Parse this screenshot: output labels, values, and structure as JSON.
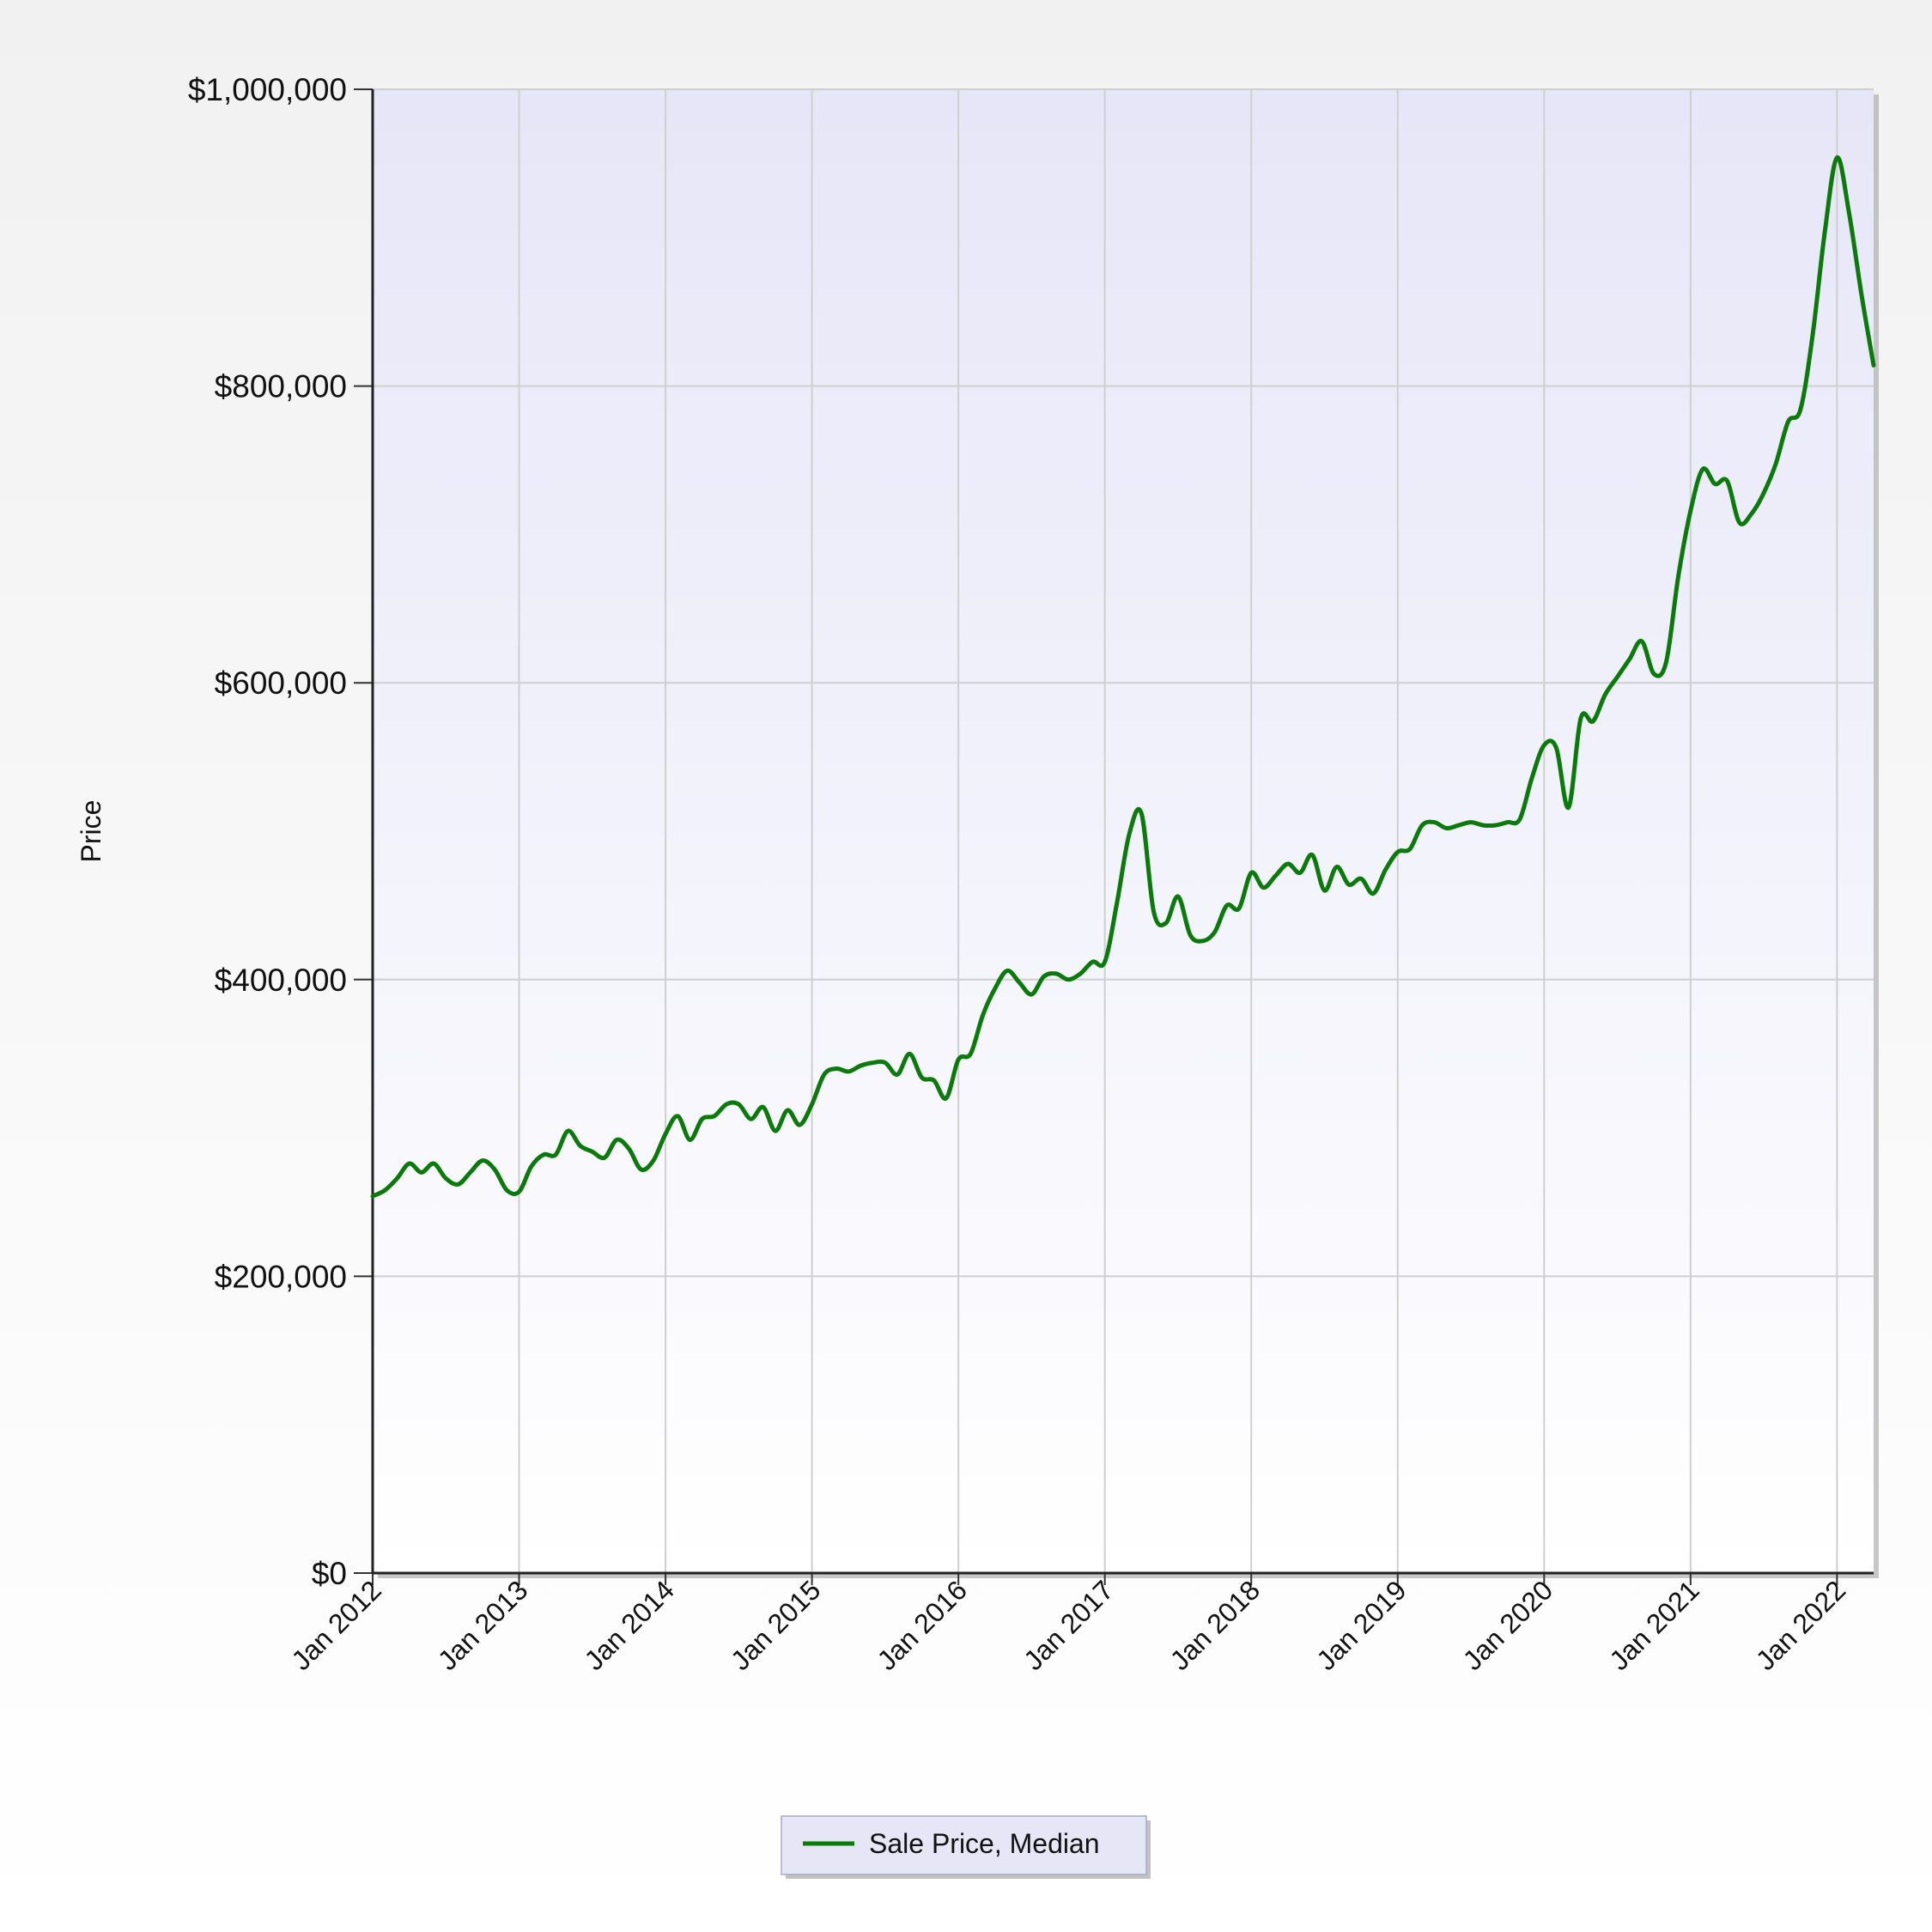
{
  "chart_data": {
    "type": "line",
    "ylabel": "Price",
    "xlabel": "",
    "ylim": [
      0,
      1000000
    ],
    "xlim": [
      "2012-01",
      "2022-04"
    ],
    "grid": true,
    "legend_position": "bottom",
    "y_ticks": [
      "$0",
      "$200,000",
      "$400,000",
      "$600,000",
      "$800,000",
      "$1,000,000"
    ],
    "x_ticks": [
      "Jan 2012",
      "Jan 2013",
      "Jan 2014",
      "Jan 2015",
      "Jan 2016",
      "Jan 2017",
      "Jan 2018",
      "Jan 2019",
      "Jan 2020",
      "Jan 2021",
      "Jan 2022"
    ],
    "series": [
      {
        "name": "Sale Price, Median",
        "color": "#0a7a0a",
        "x": [
          "2012-01",
          "2012-02",
          "2012-03",
          "2012-04",
          "2012-05",
          "2012-06",
          "2012-07",
          "2012-08",
          "2012-09",
          "2012-10",
          "2012-11",
          "2012-12",
          "2013-01",
          "2013-02",
          "2013-03",
          "2013-04",
          "2013-05",
          "2013-06",
          "2013-07",
          "2013-08",
          "2013-09",
          "2013-10",
          "2013-11",
          "2013-12",
          "2014-01",
          "2014-02",
          "2014-03",
          "2014-04",
          "2014-05",
          "2014-06",
          "2014-07",
          "2014-08",
          "2014-09",
          "2014-10",
          "2014-11",
          "2014-12",
          "2015-01",
          "2015-02",
          "2015-03",
          "2015-04",
          "2015-05",
          "2015-06",
          "2015-07",
          "2015-08",
          "2015-09",
          "2015-10",
          "2015-11",
          "2015-12",
          "2016-01",
          "2016-02",
          "2016-03",
          "2016-04",
          "2016-05",
          "2016-06",
          "2016-07",
          "2016-08",
          "2016-09",
          "2016-10",
          "2016-11",
          "2016-12",
          "2017-01",
          "2017-02",
          "2017-03",
          "2017-04",
          "2017-05",
          "2017-06",
          "2017-07",
          "2017-08",
          "2017-09",
          "2017-10",
          "2017-11",
          "2017-12",
          "2018-01",
          "2018-02",
          "2018-03",
          "2018-04",
          "2018-05",
          "2018-06",
          "2018-07",
          "2018-08",
          "2018-09",
          "2018-10",
          "2018-11",
          "2018-12",
          "2019-01",
          "2019-02",
          "2019-03",
          "2019-04",
          "2019-05",
          "2019-06",
          "2019-07",
          "2019-08",
          "2019-09",
          "2019-10",
          "2019-11",
          "2019-12",
          "2020-01",
          "2020-02",
          "2020-03",
          "2020-04",
          "2020-05",
          "2020-06",
          "2020-07",
          "2020-08",
          "2020-09",
          "2020-10",
          "2020-11",
          "2020-12",
          "2021-01",
          "2021-02",
          "2021-03",
          "2021-04",
          "2021-05",
          "2021-06",
          "2021-07",
          "2021-08",
          "2021-09",
          "2021-10",
          "2021-11",
          "2021-12",
          "2022-01",
          "2022-02",
          "2022-03",
          "2022-04"
        ],
        "values": [
          254000,
          258000,
          266000,
          276000,
          270000,
          276000,
          266000,
          262000,
          270000,
          278000,
          272000,
          258000,
          257000,
          274000,
          282000,
          282000,
          298000,
          288000,
          284000,
          280000,
          292000,
          286000,
          272000,
          278000,
          296000,
          308000,
          292000,
          306000,
          308000,
          316000,
          316000,
          306000,
          314000,
          298000,
          312000,
          302000,
          316000,
          336000,
          340000,
          338000,
          342000,
          344000,
          344000,
          336000,
          350000,
          334000,
          332000,
          320000,
          346000,
          350000,
          376000,
          394000,
          406000,
          398000,
          390000,
          402000,
          404000,
          400000,
          404000,
          412000,
          412000,
          452000,
          498000,
          512000,
          446000,
          438000,
          456000,
          430000,
          426000,
          432000,
          450000,
          448000,
          472000,
          462000,
          470000,
          478000,
          472000,
          484000,
          460000,
          476000,
          464000,
          468000,
          458000,
          474000,
          486000,
          488000,
          504000,
          506000,
          502000,
          504000,
          506000,
          504000,
          504000,
          506000,
          508000,
          536000,
          558000,
          556000,
          516000,
          576000,
          574000,
          592000,
          604000,
          616000,
          628000,
          606000,
          614000,
          672000,
          716000,
          744000,
          734000,
          736000,
          708000,
          714000,
          728000,
          748000,
          776000,
          784000,
          834000,
          904000,
          954000,
          916000,
          862000,
          814000
        ]
      }
    ]
  }
}
